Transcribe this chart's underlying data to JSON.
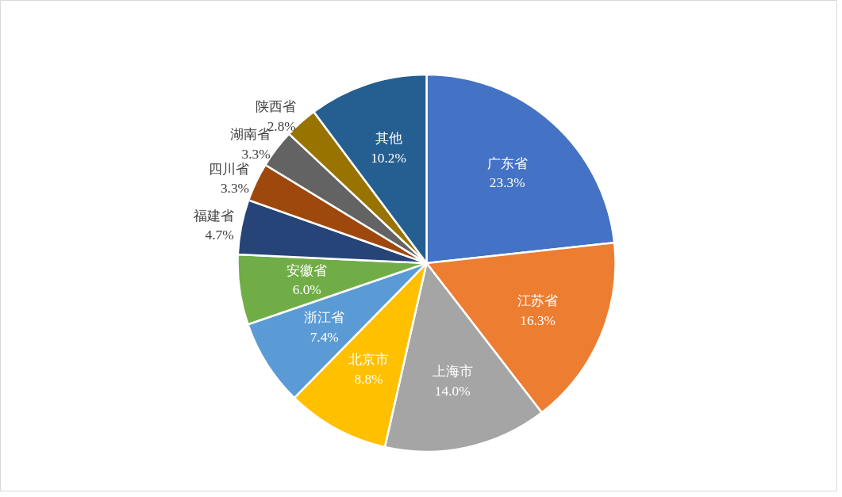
{
  "chart_data": {
    "type": "pie",
    "categories": [
      "广东省",
      "江苏省",
      "上海市",
      "北京市",
      "浙江省",
      "安徽省",
      "福建省",
      "四川省",
      "湖南省",
      "陕西省",
      "其他"
    ],
    "values": [
      23.3,
      16.3,
      14.0,
      8.8,
      7.4,
      6.0,
      4.7,
      3.3,
      3.3,
      2.8,
      10.2
    ],
    "value_labels": [
      "23.3%",
      "16.3%",
      "14.0%",
      "8.8%",
      "7.4%",
      "6.0%",
      "4.7%",
      "3.3%",
      "3.3%",
      "2.8%",
      "10.2%"
    ],
    "colors": [
      "#4472c4",
      "#ed7d31",
      "#a5a5a5",
      "#ffc000",
      "#5b9bd5",
      "#70ad47",
      "#264478",
      "#9e480e",
      "#636363",
      "#997300",
      "#255e91"
    ]
  }
}
